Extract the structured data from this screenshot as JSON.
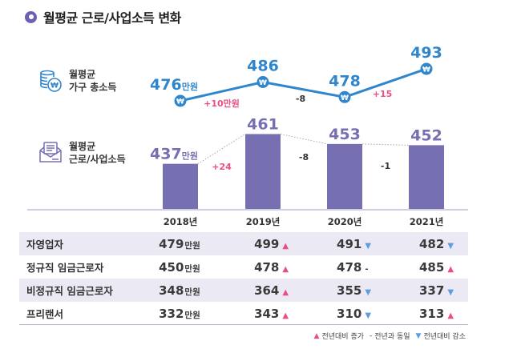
{
  "title": "월평균 근로/사업소득 변화",
  "colors": {
    "accent_purple": "#6b5fb5",
    "bar_purple": "#7670b3",
    "line_blue": "#2f86cc",
    "increase_pink": "#e84f86",
    "decrease_blue": "#5c9fdc"
  },
  "household_label": {
    "line1": "월평균",
    "line2": "가구 총소득",
    "icon": "coins-won-icon"
  },
  "labor_label": {
    "line1": "월평균",
    "line2": "근로/사업소득",
    "icon": "envelope-letter-icon"
  },
  "chart_data": [
    {
      "type": "line",
      "name": "월평균 가구 총소득",
      "x": [
        "2018년",
        "2019년",
        "2020년",
        "2021년"
      ],
      "values": [
        476,
        486,
        478,
        493
      ],
      "value_labels": [
        "476",
        "486",
        "478",
        "493"
      ],
      "first_unit": "만원",
      "changes": [
        "+10만원",
        "-8",
        "+15"
      ],
      "marker": "won-sign",
      "color": "#2f86cc"
    },
    {
      "type": "bar",
      "name": "월평균 근로/사업소득",
      "categories": [
        "2018년",
        "2019년",
        "2020년",
        "2021년"
      ],
      "values": [
        437,
        461,
        453,
        452
      ],
      "value_labels": [
        "437",
        "461",
        "453",
        "452"
      ],
      "first_unit": "만원",
      "changes": [
        "+24",
        "-8",
        "-1"
      ],
      "color": "#7670b3"
    }
  ],
  "years": [
    "2018년",
    "2019년",
    "2020년",
    "2021년"
  ],
  "table": {
    "rows": [
      {
        "name": "자영업자",
        "v2018": "479",
        "unit": "만원",
        "v2019": "499",
        "t2019": "up",
        "v2020": "491",
        "t2020": "down",
        "v2021": "482",
        "t2021": "down"
      },
      {
        "name": "정규직 임금근로자",
        "v2018": "450",
        "unit": "만원",
        "v2019": "478",
        "t2019": "up",
        "v2020": "478",
        "t2020": "flat",
        "v2021": "485",
        "t2021": "up"
      },
      {
        "name": "비정규직 임금근로자",
        "v2018": "348",
        "unit": "만원",
        "v2019": "364",
        "t2019": "up",
        "v2020": "355",
        "t2020": "down",
        "v2021": "337",
        "t2021": "down"
      },
      {
        "name": "프리랜서",
        "v2018": "332",
        "unit": "만원",
        "v2019": "343",
        "t2019": "up",
        "v2020": "310",
        "t2020": "down",
        "v2021": "313",
        "t2021": "up"
      }
    ]
  },
  "arrows": {
    "up": "▲",
    "down": "▼",
    "flat": "-"
  },
  "legend": {
    "up_symbol": "▲",
    "up_label": "전년대비 증가",
    "flat_symbol": "-",
    "flat_label": "전년과 동일",
    "down_symbol": "▼",
    "down_label": "전년대비 감소"
  }
}
